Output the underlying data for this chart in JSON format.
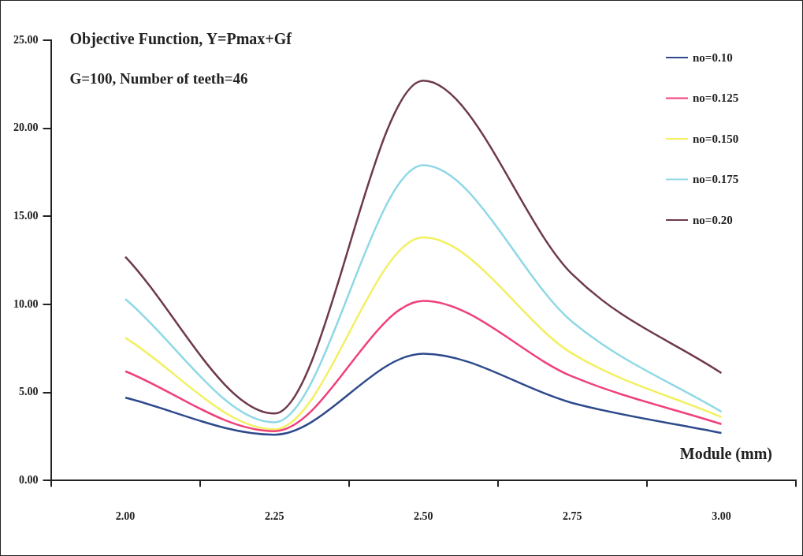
{
  "chart_data": {
    "type": "line",
    "title": "Objective Function, Y=Pmax+Gf",
    "subtitle": "G=100, Number of teeth=46",
    "xlabel": "Module (mm)",
    "categories": [
      "2.00",
      "2.25",
      "2.50",
      "2.75",
      "3.00"
    ],
    "series": [
      {
        "name": "no=0.10",
        "color": "#2e4a8c",
        "values": [
          4.7,
          2.6,
          7.2,
          4.4,
          2.7
        ]
      },
      {
        "name": "no=0.125",
        "color": "#f0407a",
        "values": [
          6.2,
          2.8,
          10.2,
          5.9,
          3.2
        ]
      },
      {
        "name": "no=0.150",
        "color": "#f2f060",
        "values": [
          8.1,
          2.9,
          13.8,
          7.2,
          3.6
        ]
      },
      {
        "name": "no=0.175",
        "color": "#8fd8e6",
        "values": [
          10.3,
          3.3,
          17.9,
          9.0,
          3.9
        ]
      },
      {
        "name": "no=0.20",
        "color": "#6e3a4a",
        "values": [
          12.7,
          3.8,
          22.7,
          11.7,
          6.1
        ]
      }
    ],
    "ylim": [
      0,
      25
    ],
    "yticks": [
      {
        "value": 0,
        "label": "0.00"
      },
      {
        "value": 5,
        "label": "5.00"
      },
      {
        "value": 10,
        "label": "10.00"
      },
      {
        "value": 15,
        "label": "15.00"
      },
      {
        "value": 20,
        "label": "20.00"
      },
      {
        "value": 25,
        "label": "25.00"
      }
    ],
    "grid": false,
    "legend": "top right",
    "marker": "none",
    "line_style": "solid"
  }
}
